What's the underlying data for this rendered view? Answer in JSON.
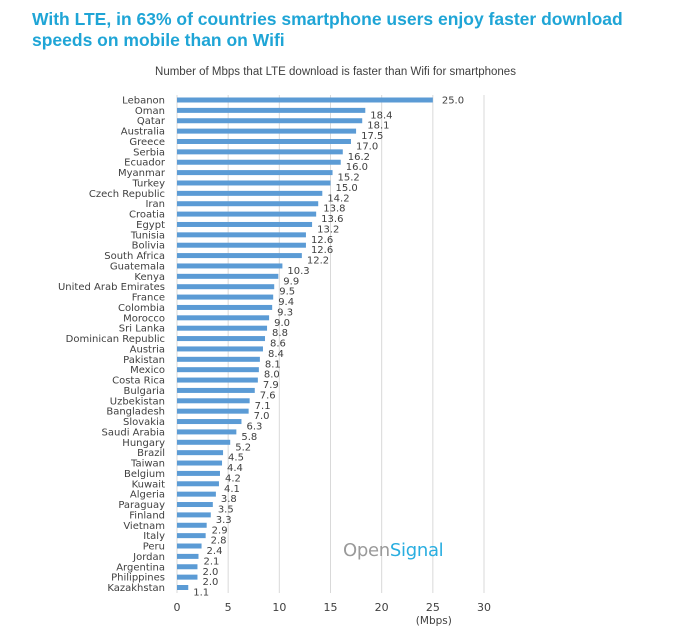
{
  "headline": "With LTE, in 63% of countries smartphone users enjoy faster download speeds on mobile than on Wifi",
  "logo": {
    "part1": "Open",
    "part2": "Signal"
  },
  "colors": {
    "headline": "#1fa5d6",
    "bar": "#5b9bd5",
    "grid": "#d9d9d9",
    "logo_accent": "#29aee0"
  },
  "chart_data": {
    "type": "bar",
    "orientation": "horizontal",
    "title": "Number of Mbps that LTE download is faster than Wifi for smartphones",
    "xlabel": "(Mbps)",
    "ylabel": "",
    "xlim": [
      0,
      30
    ],
    "xticks": [
      0,
      5,
      10,
      15,
      20,
      25,
      30
    ],
    "grid": true,
    "categories": [
      "Lebanon",
      "Oman",
      "Qatar",
      "Australia",
      "Greece",
      "Serbia",
      "Ecuador",
      "Myanmar",
      "Turkey",
      "Czech Republic",
      "Iran",
      "Croatia",
      "Egypt",
      "Tunisia",
      "Bolivia",
      "South Africa",
      "Guatemala",
      "Kenya",
      "United Arab Emirates",
      "France",
      "Colombia",
      "Morocco",
      "Sri Lanka",
      "Dominican Republic",
      "Austria",
      "Pakistan",
      "Mexico",
      "Costa Rica",
      "Bulgaria",
      "Uzbekistan",
      "Bangladesh",
      "Slovakia",
      "Saudi Arabia",
      "Hungary",
      "Brazil",
      "Taiwan",
      "Belgium",
      "Kuwait",
      "Algeria",
      "Paraguay",
      "Finland",
      "Vietnam",
      "Italy",
      "Peru",
      "Jordan",
      "Argentina",
      "Philippines",
      "Kazakhstan"
    ],
    "values": [
      25.0,
      18.4,
      18.1,
      17.5,
      17.0,
      16.2,
      16.0,
      15.2,
      15.0,
      14.2,
      13.8,
      13.6,
      13.2,
      12.6,
      12.6,
      12.2,
      10.3,
      9.9,
      9.5,
      9.4,
      9.3,
      9.0,
      8.8,
      8.6,
      8.4,
      8.1,
      8.0,
      7.9,
      7.6,
      7.1,
      7.0,
      6.3,
      5.8,
      5.2,
      4.5,
      4.4,
      4.2,
      4.1,
      3.8,
      3.5,
      3.3,
      2.9,
      2.8,
      2.4,
      2.1,
      2.0,
      2.0,
      1.1
    ],
    "value_labels": [
      "25.0",
      "18.4",
      "18.1",
      "17.5",
      "17.0",
      "16.2",
      "16.0",
      "15.2",
      "15.0",
      "14.2",
      "13.8",
      "13.6",
      "13.2",
      "12.6",
      "12.6",
      "12.2",
      "10.3",
      "9.9",
      "9.5",
      "9.4",
      "9.3",
      "9.0",
      "8.8",
      "8.6",
      "8.4",
      "8.1",
      "8.0",
      "7.9",
      "7.6",
      "7.1",
      "7.0",
      "6.3",
      "5.8",
      "5.2",
      "4.5",
      "4.4",
      "4.2",
      "4.1",
      "3.8",
      "3.5",
      "3.3",
      "2.9",
      "2.8",
      "2.4",
      "2.1",
      "2.0",
      "2.0",
      "1.1"
    ]
  }
}
